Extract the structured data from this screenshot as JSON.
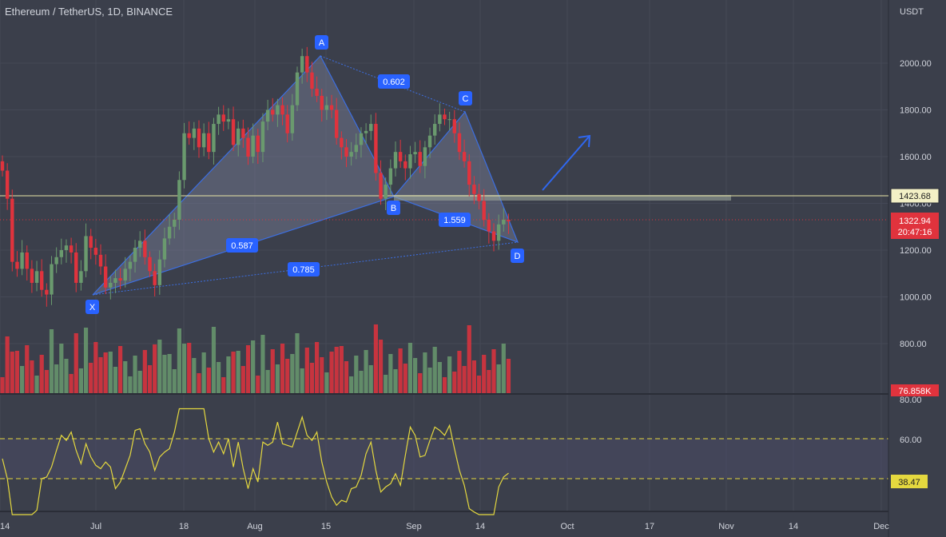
{
  "header": {
    "symbol_title": "Ethereum / TetherUS, 1D, BINANCE",
    "currency": "USDT"
  },
  "colors": {
    "background": "#3b3f4b",
    "up": "#6a9a6e",
    "down": "#e0333d",
    "pattern": "#3c6fe3",
    "level_line": "#e8e4a7",
    "rsi_line": "#e4d83f",
    "price_badge": "#e0333d",
    "label_bg": "#2962ff"
  },
  "price_axis": {
    "labels": [
      "2000.00",
      "1800.00",
      "1600.00",
      "1400.00",
      "1200.00",
      "1000.00",
      "800.00"
    ],
    "level_marker": "1423.68",
    "last_price": "1322.94",
    "countdown": "20:47:16",
    "volume_marker": "76.858K"
  },
  "rsi_axis": {
    "labels": [
      "80.00",
      "60.00"
    ],
    "current_marker": "38.47"
  },
  "time_axis": [
    "14",
    "Jul",
    "18",
    "Aug",
    "15",
    "Sep",
    "14",
    "Oct",
    "17",
    "Nov",
    "14",
    "Dec"
  ],
  "pattern": {
    "points": [
      {
        "name": "X",
        "price": 1005
      },
      {
        "name": "A",
        "price": 2030
      },
      {
        "name": "B",
        "price": 1420
      },
      {
        "name": "C",
        "price": 1775
      },
      {
        "name": "D",
        "price": 1215
      }
    ],
    "ratios": [
      "0.602",
      "0.587",
      "1.559",
      "0.785"
    ]
  },
  "chart_data": {
    "type": "candlestick",
    "title": "Ethereum / TetherUS, 1D, BINANCE",
    "ylabel": "USDT",
    "ylim": [
      760,
      2200
    ],
    "ohlc_close_approx": [
      1540,
      1420,
      1150,
      1120,
      1190,
      1120,
      1060,
      1110,
      1030,
      1010,
      1140,
      1170,
      1200,
      1220,
      1190,
      1060,
      1110,
      1260,
      1210,
      1180,
      1130,
      1040,
      1060,
      1080,
      1070,
      1120,
      1150,
      1210,
      1240,
      1170,
      1110,
      1050,
      1160,
      1250,
      1300,
      1330,
      1500,
      1700,
      1680,
      1720,
      1640,
      1700,
      1620,
      1740,
      1780,
      1750,
      1760,
      1650,
      1720,
      1680,
      1600,
      1690,
      1620,
      1750,
      1800,
      1780,
      1820,
      1780,
      1700,
      1820,
      1960,
      2030,
      1960,
      1890,
      1860,
      1800,
      1820,
      1800,
      1680,
      1640,
      1600,
      1620,
      1650,
      1700,
      1710,
      1740,
      1530,
      1420,
      1480,
      1550,
      1620,
      1580,
      1550,
      1610,
      1620,
      1560,
      1640,
      1690,
      1740,
      1780,
      1760,
      1760,
      1700,
      1620,
      1580,
      1480,
      1440,
      1410,
      1330,
      1280,
      1240,
      1310,
      1330,
      1322.94
    ],
    "volume_last": "76.858K",
    "rsi": {
      "upper": 60,
      "lower": 40,
      "last": 38.47
    }
  }
}
